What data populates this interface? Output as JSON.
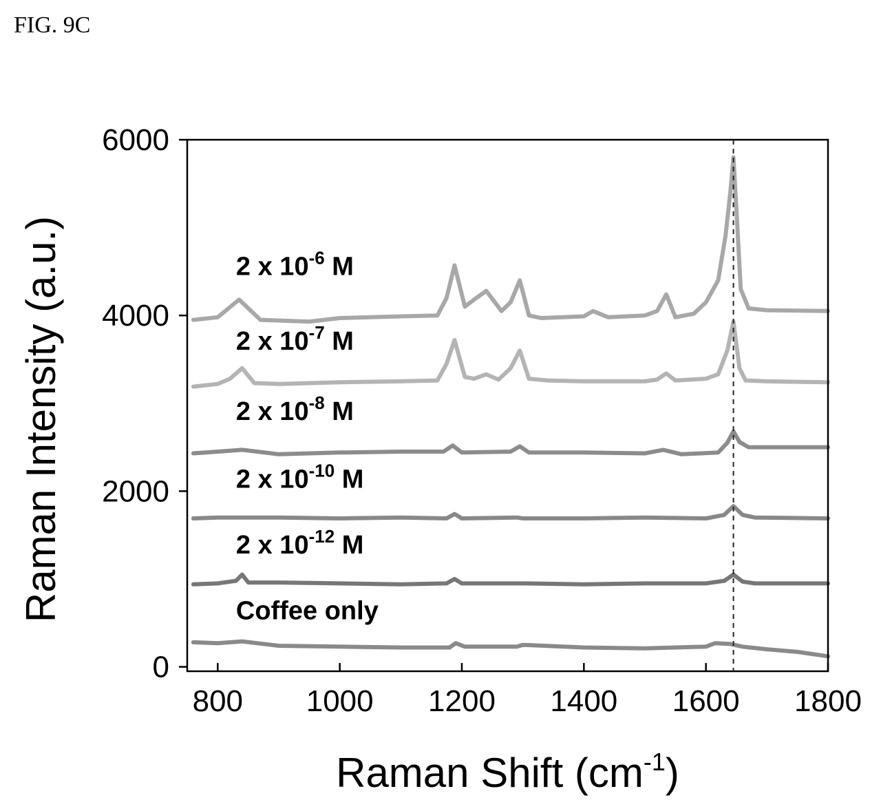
{
  "figure_label": "FIG. 9C",
  "chart_data": {
    "type": "line",
    "xlabel": "Raman Shift (cm",
    "xlabel_sup": "-1",
    "xlabel_end": ")",
    "ylabel": "Raman Intensity (a.u.)",
    "xlim": [
      750,
      1800
    ],
    "ylim": [
      -50,
      6000
    ],
    "xticks": [
      800,
      1000,
      1200,
      1400,
      1600,
      1800
    ],
    "yticks": [
      0,
      2000,
      4000,
      6000
    ],
    "reference_line_x": 1645,
    "series": [
      {
        "name": "2 x 10-6 M",
        "label_base": "2 x 10",
        "label_sup": "-6",
        "label_unit": " M",
        "color": "#a8a8a8",
        "x": [
          760,
          800,
          835,
          870,
          950,
          1000,
          1100,
          1160,
          1175,
          1188,
          1205,
          1220,
          1240,
          1265,
          1280,
          1295,
          1310,
          1330,
          1400,
          1415,
          1440,
          1500,
          1520,
          1535,
          1550,
          1580,
          1600,
          1620,
          1632,
          1640,
          1645,
          1650,
          1657,
          1670,
          1700,
          1800
        ],
        "y": [
          3950,
          3980,
          4180,
          3950,
          3930,
          3970,
          3990,
          4000,
          4200,
          4570,
          4100,
          4180,
          4280,
          4050,
          4150,
          4400,
          4000,
          3970,
          3990,
          4050,
          3980,
          4000,
          4050,
          4240,
          3980,
          4020,
          4150,
          4400,
          4900,
          5400,
          5800,
          5200,
          4300,
          4080,
          4060,
          4050
        ]
      },
      {
        "name": "2 x 10-7 M",
        "label_base": "2 x 10",
        "label_sup": "-7",
        "label_unit": " M",
        "color": "#b4b4b4",
        "x": [
          760,
          800,
          820,
          840,
          860,
          900,
          1000,
          1100,
          1160,
          1175,
          1188,
          1205,
          1220,
          1240,
          1260,
          1280,
          1295,
          1310,
          1340,
          1400,
          1500,
          1520,
          1535,
          1550,
          1600,
          1620,
          1635,
          1645,
          1655,
          1665,
          1700,
          1800
        ],
        "y": [
          3190,
          3220,
          3280,
          3400,
          3230,
          3220,
          3240,
          3250,
          3260,
          3450,
          3720,
          3300,
          3280,
          3330,
          3270,
          3400,
          3600,
          3280,
          3260,
          3250,
          3250,
          3270,
          3340,
          3260,
          3280,
          3330,
          3600,
          3930,
          3400,
          3260,
          3250,
          3240
        ]
      },
      {
        "name": "2 x 10-8 M",
        "label_base": "2 x 10",
        "label_sup": "-8",
        "label_unit": " M",
        "color": "#8c8c8c",
        "x": [
          760,
          800,
          840,
          900,
          1000,
          1100,
          1170,
          1185,
          1200,
          1280,
          1295,
          1310,
          1400,
          1500,
          1530,
          1560,
          1620,
          1635,
          1645,
          1655,
          1670,
          1800
        ],
        "y": [
          2430,
          2450,
          2470,
          2420,
          2440,
          2450,
          2450,
          2520,
          2440,
          2450,
          2510,
          2440,
          2440,
          2430,
          2470,
          2420,
          2440,
          2550,
          2680,
          2560,
          2500,
          2500
        ]
      },
      {
        "name": "2 x 10-10 M",
        "label_base": "2 x 10",
        "label_sup": "-10",
        "label_unit": " M",
        "color": "#888888",
        "x": [
          760,
          800,
          900,
          1000,
          1100,
          1175,
          1188,
          1200,
          1290,
          1300,
          1400,
          1500,
          1600,
          1630,
          1645,
          1660,
          1680,
          1800
        ],
        "y": [
          1690,
          1700,
          1700,
          1690,
          1700,
          1690,
          1740,
          1690,
          1700,
          1690,
          1690,
          1700,
          1690,
          1730,
          1830,
          1730,
          1700,
          1690
        ]
      },
      {
        "name": "2 x 10-12 M",
        "label_base": "2 x 10",
        "label_sup": "-12",
        "label_unit": " M",
        "color": "#777777",
        "x": [
          760,
          800,
          830,
          840,
          850,
          900,
          1000,
          1100,
          1175,
          1188,
          1200,
          1300,
          1400,
          1500,
          1600,
          1630,
          1645,
          1660,
          1680,
          1800
        ],
        "y": [
          940,
          950,
          980,
          1050,
          960,
          960,
          950,
          940,
          950,
          1000,
          950,
          950,
          940,
          950,
          950,
          980,
          1050,
          970,
          950,
          950
        ]
      },
      {
        "name": "Coffee only",
        "label_base": "Coffee only",
        "label_sup": "",
        "label_unit": "",
        "color": "#8a8a8a",
        "x": [
          760,
          800,
          840,
          900,
          1000,
          1100,
          1180,
          1190,
          1205,
          1290,
          1300,
          1400,
          1500,
          1600,
          1615,
          1640,
          1660,
          1700,
          1750,
          1800
        ],
        "y": [
          280,
          270,
          290,
          240,
          230,
          220,
          220,
          270,
          230,
          230,
          250,
          220,
          210,
          230,
          270,
          260,
          230,
          200,
          170,
          120
        ]
      }
    ],
    "annotations": [
      {
        "series_index": 0,
        "x": 830,
        "y": 4460
      },
      {
        "series_index": 1,
        "x": 830,
        "y": 3610
      },
      {
        "series_index": 2,
        "x": 830,
        "y": 2810
      },
      {
        "series_index": 3,
        "x": 830,
        "y": 2040
      },
      {
        "series_index": 4,
        "x": 830,
        "y": 1290
      },
      {
        "series_index": 5,
        "x": 830,
        "y": 540
      }
    ]
  }
}
